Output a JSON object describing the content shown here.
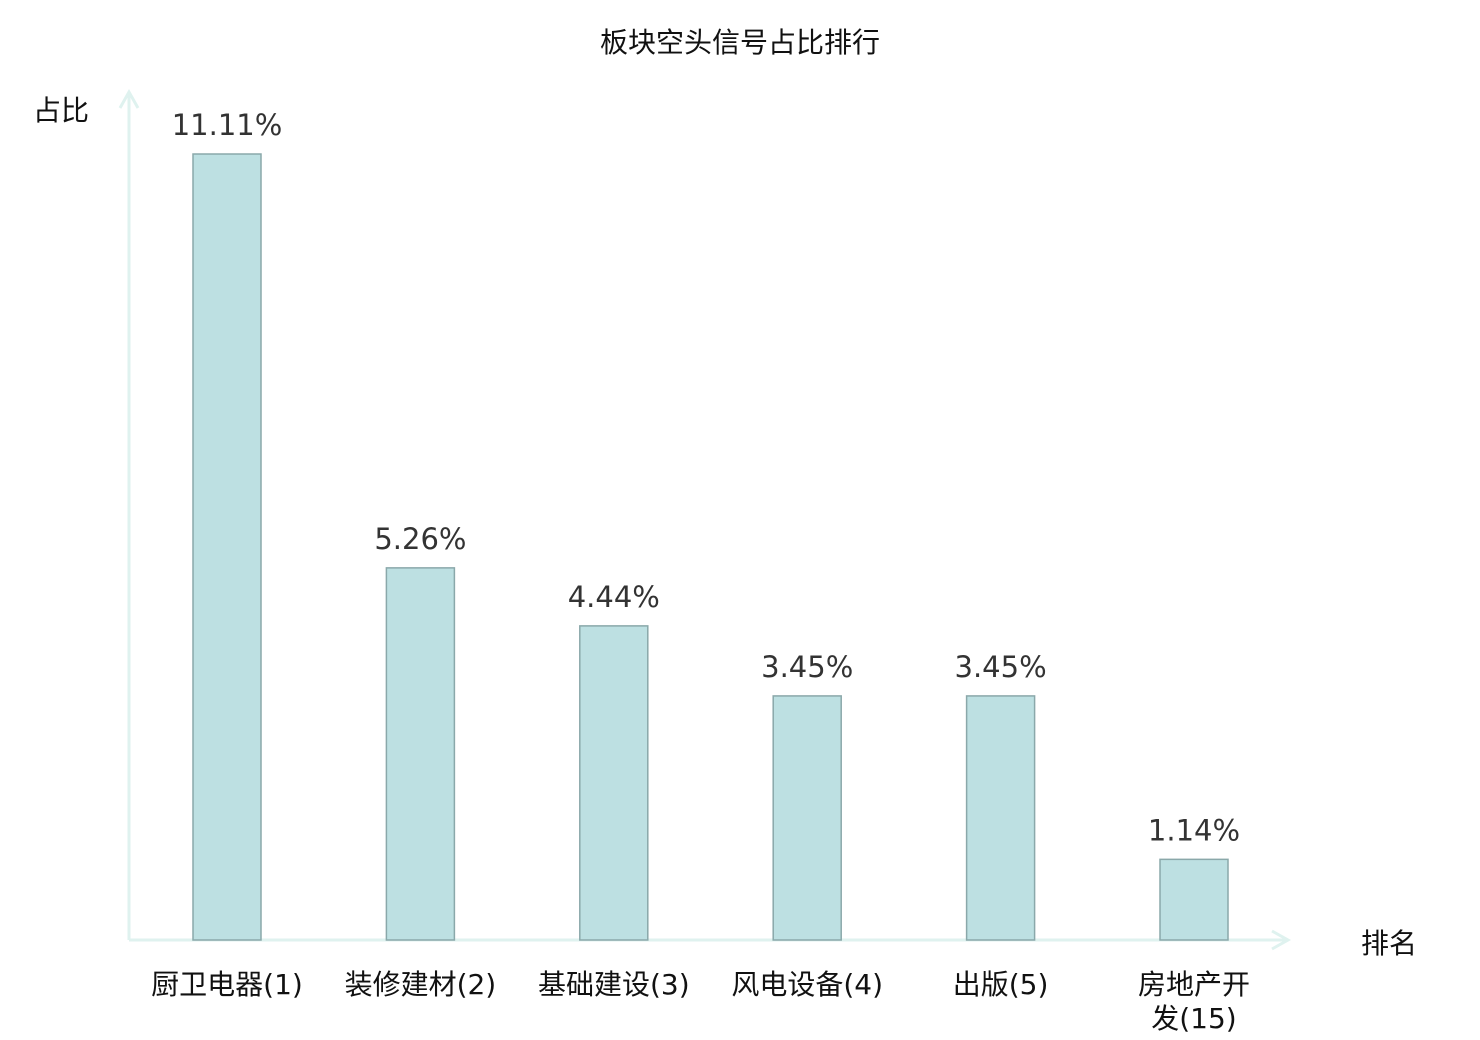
{
  "chart_data": {
    "type": "bar",
    "title": "板块空头信号占比排行",
    "ylabel": "占比",
    "xlabel": "排名",
    "categories": [
      [
        "厨卫电器(1)"
      ],
      [
        "装修建材(2)"
      ],
      [
        "基础建设(3)"
      ],
      [
        "风电设备(4)"
      ],
      [
        "出版(5)"
      ],
      [
        "房地产开",
        "发(15)"
      ]
    ],
    "values": [
      11.11,
      5.26,
      4.44,
      3.45,
      3.45,
      1.14
    ],
    "value_labels": [
      "11.11%",
      "5.26%",
      "4.44%",
      "3.45%",
      "3.45%",
      "1.14%"
    ],
    "highlight_index": 5,
    "ylim": [
      0,
      11.11
    ],
    "grid": false,
    "colors": {
      "bar_fill": "#bde0e2",
      "bar_stroke": "#8aa8aa",
      "axis": "#dff2ef",
      "highlight_label": "#e0191f",
      "text": "#111111",
      "value_text": "#333333"
    }
  }
}
